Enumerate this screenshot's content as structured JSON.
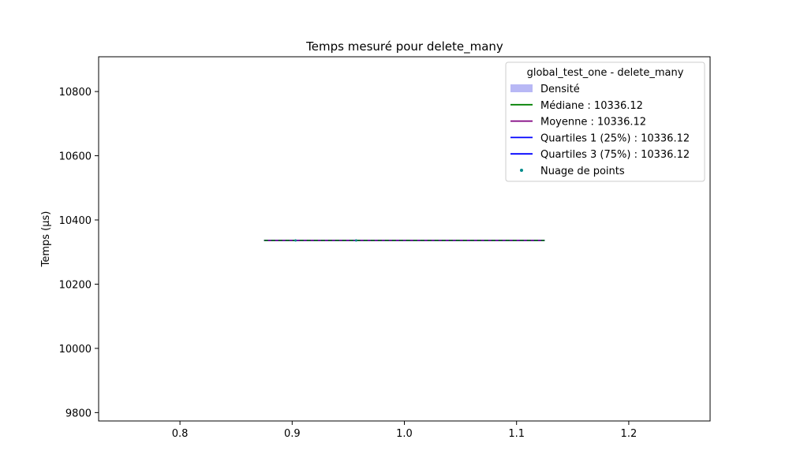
{
  "chart_data": {
    "type": "violin",
    "title": "Temps mesuré pour delete_many",
    "xlabel": "",
    "ylabel": "Temps (µs)",
    "xlim": [
      0.7275,
      1.2725
    ],
    "ylim": [
      9773.9,
      10908.3
    ],
    "xticks": [
      0.8,
      0.9,
      1.0,
      1.1,
      1.2
    ],
    "xtick_labels": [
      "0.8",
      "0.9",
      "1.0",
      "1.1",
      "1.2"
    ],
    "yticks": [
      9800,
      10000,
      10200,
      10400,
      10600,
      10800
    ],
    "ytick_labels": [
      "9800",
      "10000",
      "10200",
      "10400",
      "10600",
      "10800"
    ],
    "grid": false,
    "legend": {
      "title": "global_test_one - delete_many",
      "placement": "top-right",
      "entries": [
        {
          "key": "density",
          "label": "Densité",
          "kind": "patch",
          "color": "#b8b8f5"
        },
        {
          "key": "median",
          "label": "Médiane : 10336.12",
          "kind": "line",
          "color": "#008000"
        },
        {
          "key": "mean",
          "label": "Moyenne : 10336.12",
          "kind": "line",
          "color": "#800080"
        },
        {
          "key": "q1",
          "label": "Quartiles 1 (25%) : 10336.12",
          "kind": "line",
          "color": "#0000ff"
        },
        {
          "key": "q3",
          "label": "Quartiles 3 (75%) : 10336.12",
          "kind": "line",
          "color": "#0000ff"
        },
        {
          "key": "points",
          "label": "Nuage de points",
          "kind": "point",
          "color": "#008b8b"
        }
      ]
    },
    "violin": {
      "position": 1.0,
      "x_range": [
        0.875,
        1.125
      ],
      "median": 10336.12,
      "mean": 10336.12,
      "q1": 10336.12,
      "q3": 10336.12
    },
    "points": [
      {
        "x": 0.903,
        "y": 10336.12
      },
      {
        "x": 0.957,
        "y": 10336.12
      }
    ]
  }
}
